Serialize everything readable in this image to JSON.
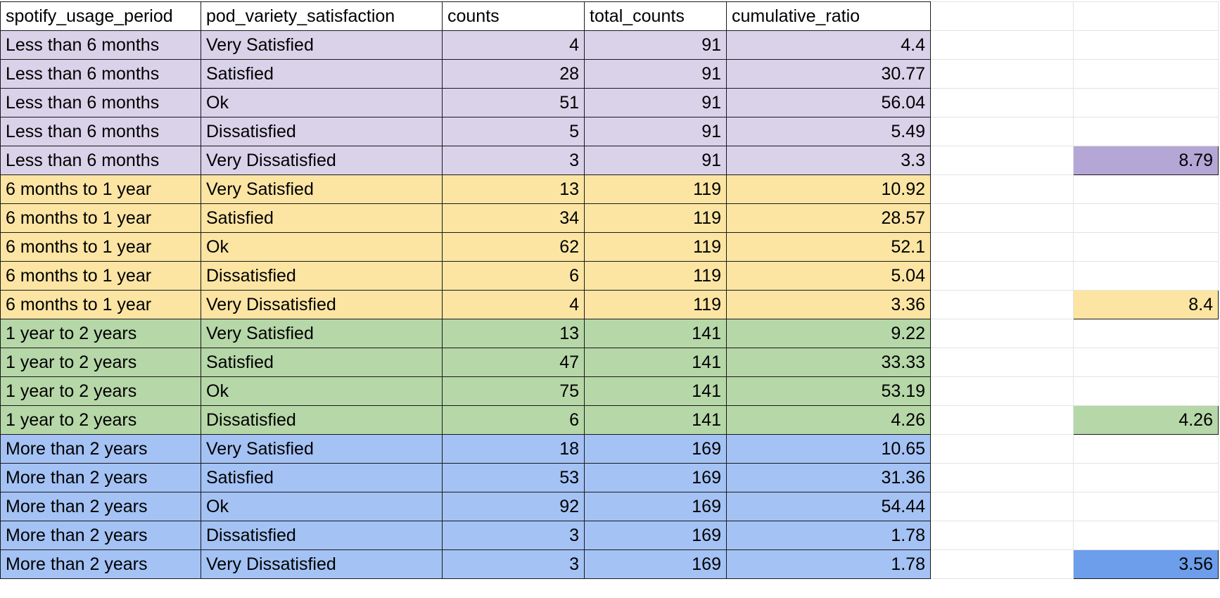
{
  "columns": [
    "spotify_usage_period",
    "pod_variety_satisfaction",
    "counts",
    "total_counts",
    "cumulative_ratio"
  ],
  "groups": [
    {
      "period": "Less than 6 months",
      "color": "#d9d2e9",
      "summary": "8.79",
      "summary_color": "#b4a7d6"
    },
    {
      "period": "6 months to 1 year",
      "color": "#fce5a3",
      "summary": "8.4",
      "summary_color": "#fce5a3"
    },
    {
      "period": "1 year to 2 years",
      "color": "#b6d7a8",
      "summary": "4.26",
      "summary_color": "#b6d7a8"
    },
    {
      "period": "More than 2 years",
      "color": "#a4c2f4",
      "summary": "3.56",
      "summary_color": "#6d9eeb"
    }
  ],
  "rows": [
    {
      "group": 0,
      "spotify_usage_period": "Less than 6 months",
      "pod_variety_satisfaction": "Very Satisfied",
      "counts": "4",
      "total_counts": "91",
      "cumulative_ratio": "4.4"
    },
    {
      "group": 0,
      "spotify_usage_period": "Less than 6 months",
      "pod_variety_satisfaction": "Satisfied",
      "counts": "28",
      "total_counts": "91",
      "cumulative_ratio": "30.77"
    },
    {
      "group": 0,
      "spotify_usage_period": "Less than 6 months",
      "pod_variety_satisfaction": "Ok",
      "counts": "51",
      "total_counts": "91",
      "cumulative_ratio": "56.04"
    },
    {
      "group": 0,
      "spotify_usage_period": "Less than 6 months",
      "pod_variety_satisfaction": "Dissatisfied",
      "counts": "5",
      "total_counts": "91",
      "cumulative_ratio": "5.49"
    },
    {
      "group": 0,
      "spotify_usage_period": "Less than 6 months",
      "pod_variety_satisfaction": "Very Dissatisfied",
      "counts": "3",
      "total_counts": "91",
      "cumulative_ratio": "3.3",
      "summary": "8.79"
    },
    {
      "group": 1,
      "spotify_usage_period": "6 months to 1 year",
      "pod_variety_satisfaction": "Very Satisfied",
      "counts": "13",
      "total_counts": "119",
      "cumulative_ratio": "10.92"
    },
    {
      "group": 1,
      "spotify_usage_period": "6 months to 1 year",
      "pod_variety_satisfaction": "Satisfied",
      "counts": "34",
      "total_counts": "119",
      "cumulative_ratio": "28.57"
    },
    {
      "group": 1,
      "spotify_usage_period": "6 months to 1 year",
      "pod_variety_satisfaction": "Ok",
      "counts": "62",
      "total_counts": "119",
      "cumulative_ratio": "52.1"
    },
    {
      "group": 1,
      "spotify_usage_period": "6 months to 1 year",
      "pod_variety_satisfaction": "Dissatisfied",
      "counts": "6",
      "total_counts": "119",
      "cumulative_ratio": "5.04"
    },
    {
      "group": 1,
      "spotify_usage_period": "6 months to 1 year",
      "pod_variety_satisfaction": "Very Dissatisfied",
      "counts": "4",
      "total_counts": "119",
      "cumulative_ratio": "3.36",
      "summary": "8.4"
    },
    {
      "group": 2,
      "spotify_usage_period": "1 year to 2 years",
      "pod_variety_satisfaction": "Very Satisfied",
      "counts": "13",
      "total_counts": "141",
      "cumulative_ratio": "9.22"
    },
    {
      "group": 2,
      "spotify_usage_period": "1 year to 2 years",
      "pod_variety_satisfaction": "Satisfied",
      "counts": "47",
      "total_counts": "141",
      "cumulative_ratio": "33.33"
    },
    {
      "group": 2,
      "spotify_usage_period": "1 year to 2 years",
      "pod_variety_satisfaction": "Ok",
      "counts": "75",
      "total_counts": "141",
      "cumulative_ratio": "53.19"
    },
    {
      "group": 2,
      "spotify_usage_period": "1 year to 2 years",
      "pod_variety_satisfaction": "Dissatisfied",
      "counts": "6",
      "total_counts": "141",
      "cumulative_ratio": "4.26",
      "summary": "4.26"
    },
    {
      "group": 3,
      "spotify_usage_period": "More than 2 years",
      "pod_variety_satisfaction": "Very Satisfied",
      "counts": "18",
      "total_counts": "169",
      "cumulative_ratio": "10.65"
    },
    {
      "group": 3,
      "spotify_usage_period": "More than 2 years",
      "pod_variety_satisfaction": "Satisfied",
      "counts": "53",
      "total_counts": "169",
      "cumulative_ratio": "31.36"
    },
    {
      "group": 3,
      "spotify_usage_period": "More than 2 years",
      "pod_variety_satisfaction": "Ok",
      "counts": "92",
      "total_counts": "169",
      "cumulative_ratio": "54.44"
    },
    {
      "group": 3,
      "spotify_usage_period": "More than 2 years",
      "pod_variety_satisfaction": "Dissatisfied",
      "counts": "3",
      "total_counts": "169",
      "cumulative_ratio": "1.78"
    },
    {
      "group": 3,
      "spotify_usage_period": "More than 2 years",
      "pod_variety_satisfaction": "Very Dissatisfied",
      "counts": "3",
      "total_counts": "169",
      "cumulative_ratio": "1.78",
      "summary": "3.56"
    }
  ]
}
